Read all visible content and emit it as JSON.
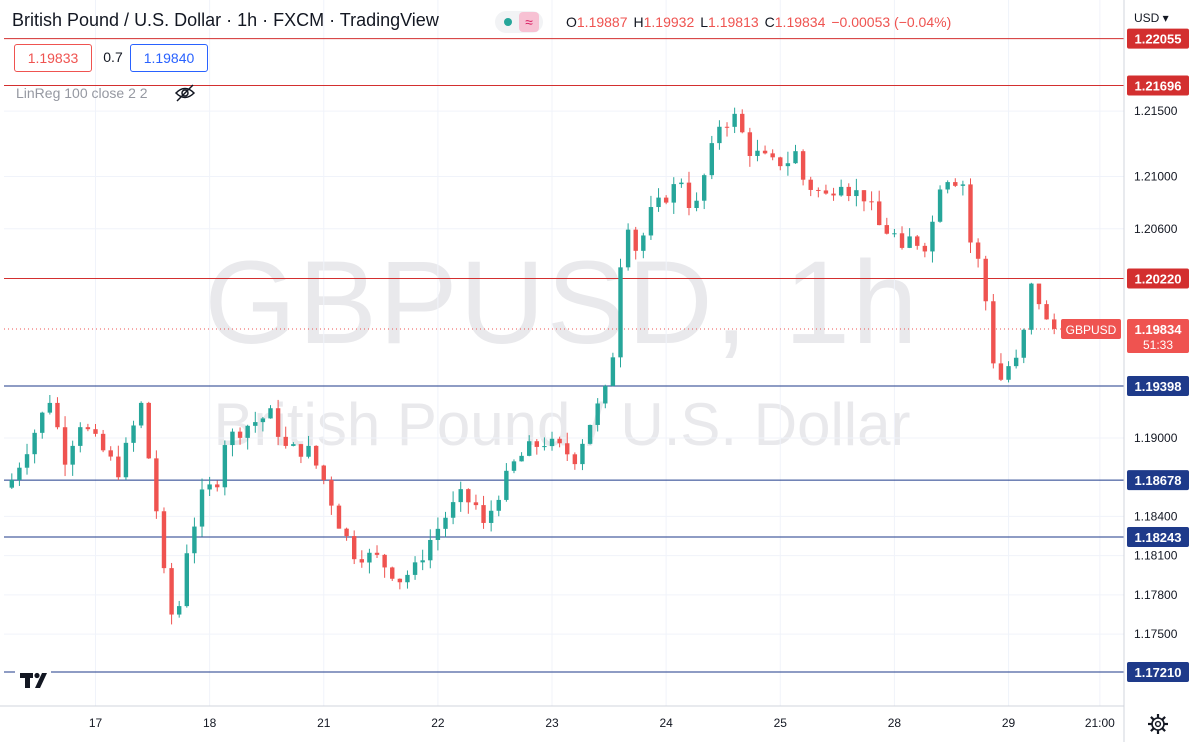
{
  "header": {
    "title": "British Pound / U.S. Dollar · 1h · FXCM · TradingView",
    "ohlc": [
      {
        "k": "O",
        "v": "1.19887"
      },
      {
        "k": "H",
        "v": "1.19932"
      },
      {
        "k": "L",
        "v": "1.19813"
      },
      {
        "k": "C",
        "v": "1.19834"
      },
      {
        "k": "",
        "v": "−0.00053 (−0.04%)"
      }
    ],
    "bid": "1.19833",
    "spread": "0.7",
    "ask": "1.19840",
    "indicator": "LinReg 100 close 2 2",
    "currency": "USD"
  },
  "watermark": {
    "symbol": "GBPUSD, 1h",
    "description": "British Pound / U.S. Dollar"
  },
  "icons": {
    "status": "market-open-dot",
    "wave": "wave-icon",
    "visibility": "eye-off-icon",
    "logo": "tradingview-logo-icon",
    "settings": "gear-icon"
  },
  "colors": {
    "up": "#26a69a",
    "down": "#ef5350",
    "resistance": "#d32f2f",
    "support": "#1e3a8a",
    "current": "#ef5350"
  },
  "chart_data": {
    "type": "candlestick",
    "timeframe": "1h",
    "ylim": [
      1.1695,
      1.2235
    ],
    "price_ticks": [
      "1.21500",
      "1.21000",
      "1.20600",
      "1.19000",
      "1.18400",
      "1.18100",
      "1.17800",
      "1.17500"
    ],
    "x_ticks": [
      {
        "label": "17",
        "bar": 11
      },
      {
        "label": "18",
        "bar": 26
      },
      {
        "label": "21",
        "bar": 41
      },
      {
        "label": "22",
        "bar": 56
      },
      {
        "label": "23",
        "bar": 71
      },
      {
        "label": "24",
        "bar": 86
      },
      {
        "label": "25",
        "bar": 101
      },
      {
        "label": "28",
        "bar": 116
      },
      {
        "label": "29",
        "bar": 131
      },
      {
        "label": "21:00",
        "bar": 143
      }
    ],
    "levels": [
      {
        "price": 1.22055,
        "label": "1.22055",
        "kind": "resistance"
      },
      {
        "price": 1.21696,
        "label": "1.21696",
        "kind": "resistance"
      },
      {
        "price": 1.2022,
        "label": "1.20220",
        "kind": "resistance"
      },
      {
        "price": 1.19398,
        "label": "1.19398",
        "kind": "support"
      },
      {
        "price": 1.18678,
        "label": "1.18678",
        "kind": "support"
      },
      {
        "price": 1.18243,
        "label": "1.18243",
        "kind": "support"
      },
      {
        "price": 1.1721,
        "label": "1.17210",
        "kind": "support"
      }
    ],
    "last_price": {
      "price": 1.19834,
      "symbol": "GBPUSD",
      "label": "1.19834",
      "countdown": "51:33"
    },
    "anchors": [
      [
        0,
        1.1868
      ],
      [
        3,
        1.1905
      ],
      [
        5,
        1.193
      ],
      [
        7,
        1.1885
      ],
      [
        9,
        1.1912
      ],
      [
        12,
        1.189
      ],
      [
        14,
        1.1875
      ],
      [
        17,
        1.1925
      ],
      [
        19,
        1.1845
      ],
      [
        20,
        1.1795
      ],
      [
        21,
        1.1765
      ],
      [
        22,
        1.1772
      ],
      [
        23,
        1.1815
      ],
      [
        25,
        1.1855
      ],
      [
        27,
        1.1868
      ],
      [
        28,
        1.1898
      ],
      [
        31,
        1.191
      ],
      [
        34,
        1.1918
      ],
      [
        36,
        1.1892
      ],
      [
        39,
        1.189
      ],
      [
        41,
        1.1868
      ],
      [
        43,
        1.1835
      ],
      [
        45,
        1.1812
      ],
      [
        48,
        1.1808
      ],
      [
        51,
        1.1792
      ],
      [
        53,
        1.18
      ],
      [
        55,
        1.1822
      ],
      [
        57,
        1.184
      ],
      [
        59,
        1.1855
      ],
      [
        61,
        1.1848
      ],
      [
        62,
        1.1832
      ],
      [
        64,
        1.1858
      ],
      [
        66,
        1.188
      ],
      [
        68,
        1.1892
      ],
      [
        70,
        1.1897
      ],
      [
        72,
        1.1892
      ],
      [
        74,
        1.1885
      ],
      [
        76,
        1.1912
      ],
      [
        78,
        1.1935
      ],
      [
        79,
        1.1965
      ],
      [
        80,
        1.2035
      ],
      [
        81,
        1.2065
      ],
      [
        82,
        1.2045
      ],
      [
        83,
        1.2055
      ],
      [
        84,
        1.2072
      ],
      [
        86,
        1.2085
      ],
      [
        88,
        1.2098
      ],
      [
        89,
        1.208
      ],
      [
        90,
        1.2078
      ],
      [
        91,
        1.21
      ],
      [
        93,
        1.214
      ],
      [
        95,
        1.2145
      ],
      [
        97,
        1.212
      ],
      [
        100,
        1.211
      ],
      [
        102,
        1.2112
      ],
      [
        103,
        1.2118
      ],
      [
        104,
        1.2098
      ],
      [
        105,
        1.2092
      ],
      [
        107,
        1.2085
      ],
      [
        109,
        1.2098
      ],
      [
        110,
        1.209
      ],
      [
        112,
        1.2085
      ],
      [
        113,
        1.2075
      ],
      [
        114,
        1.2062
      ],
      [
        116,
        1.2055
      ],
      [
        117,
        1.204
      ],
      [
        118,
        1.2052
      ],
      [
        120,
        1.2048
      ],
      [
        121,
        1.2065
      ],
      [
        122,
        1.2095
      ],
      [
        123,
        1.21
      ],
      [
        125,
        1.2095
      ],
      [
        126,
        1.205
      ],
      [
        127,
        1.2035
      ],
      [
        128,
        1.2005
      ],
      [
        129,
        1.196
      ],
      [
        130,
        1.1945
      ],
      [
        131,
        1.1955
      ],
      [
        132,
        1.1958
      ],
      [
        133,
        1.198
      ],
      [
        134,
        1.2015
      ],
      [
        135,
        1.2005
      ],
      [
        136,
        1.1988
      ],
      [
        137,
        1.19834
      ]
    ]
  }
}
